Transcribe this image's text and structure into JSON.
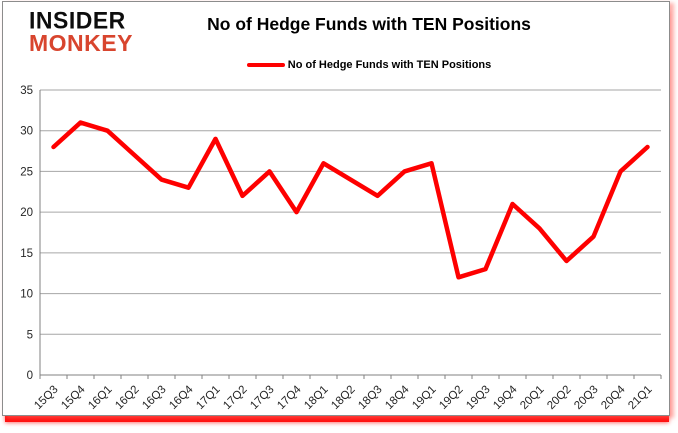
{
  "logo": {
    "line1": "INSIDER",
    "line2": "MONKEY"
  },
  "header": {
    "title": "No of Hedge Funds with TEN Positions"
  },
  "legend": {
    "label": "No of Hedge Funds with TEN Positions"
  },
  "colors": {
    "line": "#fe0000",
    "logo_red": "#d8452e",
    "grid": "#a6a6a6",
    "axis": "#808080",
    "axis_text": "#262626",
    "card_border": "#8c8c8c",
    "bottom_bar": "#ff1010"
  },
  "chart_data": {
    "type": "line",
    "title": "No of Hedge Funds with TEN Positions",
    "x": [
      "15Q3",
      "15Q4",
      "16Q1",
      "16Q2",
      "16Q3",
      "16Q4",
      "17Q1",
      "17Q2",
      "17Q3",
      "17Q4",
      "18Q1",
      "18Q2",
      "18Q3",
      "18Q4",
      "19Q1",
      "19Q2",
      "19Q3",
      "19Q4",
      "20Q1",
      "20Q2",
      "20Q3",
      "20Q4",
      "21Q1"
    ],
    "series": [
      {
        "name": "No of Hedge Funds with TEN Positions",
        "color": "#fe0000",
        "values": [
          28,
          31,
          30,
          27,
          24,
          23,
          29,
          22,
          25,
          20,
          26,
          24,
          22,
          25,
          26,
          12,
          13,
          21,
          18,
          14,
          17,
          25,
          28
        ]
      }
    ],
    "xlabel": "",
    "ylabel": "",
    "ylim": [
      0,
      35
    ],
    "yticks": [
      0,
      5,
      10,
      15,
      20,
      25,
      30,
      35
    ],
    "grid": true,
    "legend_position": "top-center",
    "x_label_rotation": -45
  }
}
